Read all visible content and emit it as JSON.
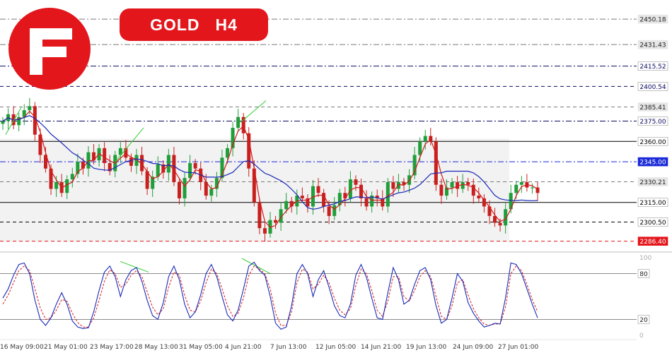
{
  "header": {
    "symbol": "GOLD",
    "timeframe": "H4"
  },
  "colors": {
    "brand_red": "#e3161b",
    "bull": "#1f9e3a",
    "bear": "#c8201e",
    "ma_fast": "#d41a1a",
    "ma_slow": "#1a2ab8",
    "stoch_main": "#1a2ab8",
    "stoch_signal": "#d41a1a",
    "trend_green": "#33cc33"
  },
  "chart_data": {
    "type": "candlestick",
    "price_levels": [
      {
        "value": 2450.18,
        "label": "2450.18",
        "style": "dash-dot",
        "color": "#7a7a7a",
        "label_bg": "#e6e6e6",
        "label_fg": "#222222"
      },
      {
        "value": 2431.43,
        "label": "2431.43",
        "style": "dash-dot",
        "color": "#7a7a7a",
        "label_bg": "#e6e6e6",
        "label_fg": "#222222"
      },
      {
        "value": 2415.52,
        "label": "2415.52",
        "style": "dash-dot",
        "color": "#0a0a60",
        "label_bg": "#ffffff",
        "label_fg": "#0a0a60"
      },
      {
        "value": 2400.54,
        "label": "2400.54",
        "style": "dash",
        "color": "#0a0a60",
        "label_bg": "#ffffff",
        "label_fg": "#0a0a60"
      },
      {
        "value": 2385.41,
        "label": "2385.41",
        "style": "dash",
        "color": "#7a7a7a",
        "label_bg": "#e6e6e6",
        "label_fg": "#222222"
      },
      {
        "value": 2375.0,
        "label": "2375.00",
        "style": "dash-dot",
        "color": "#0a0a60",
        "label_bg": "#ffffff",
        "label_fg": "#0a0a60"
      },
      {
        "value": 2360.0,
        "label": "2360.00",
        "style": "solid",
        "color": "#000000",
        "label_bg": "#ffffff",
        "label_fg": "#000000"
      },
      {
        "value": 2345.0,
        "label": "2345.00",
        "style": "dash-dot",
        "color": "#1a2ad8",
        "label_bg": "#1a2ad8",
        "label_fg": "#ffffff"
      },
      {
        "value": 2330.21,
        "label": "2330.21",
        "style": "dash",
        "color": "#7a7a7a",
        "label_bg": "#e6e6e6",
        "label_fg": "#222222"
      },
      {
        "value": 2315.0,
        "label": "2315.00",
        "style": "solid",
        "color": "#000000",
        "label_bg": "#ffffff",
        "label_fg": "#000000"
      },
      {
        "value": 2300.5,
        "label": "2300.50",
        "style": "dash",
        "color": "#000000",
        "label_bg": "#ffffff",
        "label_fg": "#000000"
      },
      {
        "value": 2286.4,
        "label": "2286.40",
        "style": "dash",
        "color": "#e3161b",
        "label_bg": "#e3161b",
        "label_fg": "#ffffff"
      }
    ],
    "y_range": [
      2281,
      2457
    ],
    "zone": [
      2286.4,
      2362
    ],
    "time_labels": [
      "16 May 09:00",
      "21 May 01:00",
      "23 May 17:00",
      "28 May 13:00",
      "31 May 05:00",
      "4 Jun 21:00",
      "7 Jun 13:00",
      "12 Jun 05:00",
      "14 Jun 21:00",
      "19 Jun 13:00",
      "24 Jun 09:00",
      "27 Jun 01:00"
    ],
    "closes": [
      2375,
      2380,
      2372,
      2378,
      2383,
      2386,
      2365,
      2350,
      2340,
      2325,
      2330,
      2322,
      2332,
      2336,
      2345,
      2340,
      2352,
      2346,
      2355,
      2344,
      2338,
      2350,
      2355,
      2348,
      2342,
      2350,
      2338,
      2325,
      2334,
      2343,
      2337,
      2350,
      2330,
      2318,
      2333,
      2344,
      2340,
      2330,
      2320,
      2325,
      2333,
      2348,
      2355,
      2370,
      2378,
      2366,
      2340,
      2315,
      2296,
      2292,
      2302,
      2300,
      2310,
      2316,
      2312,
      2320,
      2318,
      2312,
      2327,
      2322,
      2312,
      2305,
      2313,
      2322,
      2318,
      2332,
      2328,
      2318,
      2312,
      2320,
      2318,
      2312,
      2330,
      2325,
      2330,
      2328,
      2335,
      2350,
      2360,
      2364,
      2360,
      2328,
      2320,
      2326,
      2330,
      2325,
      2330,
      2328,
      2320,
      2318,
      2312,
      2305,
      2300,
      2298,
      2310,
      2322,
      2328,
      2330,
      2326,
      2326,
      2322
    ],
    "stochastic": {
      "levels": [
        80,
        20
      ],
      "level_labels": [
        "80",
        "20"
      ],
      "range_labels": [
        "100",
        "0"
      ],
      "main": [
        48,
        60,
        78,
        92,
        94,
        80,
        45,
        20,
        12,
        22,
        40,
        55,
        40,
        18,
        10,
        8,
        9,
        30,
        58,
        82,
        90,
        76,
        50,
        72,
        84,
        88,
        70,
        45,
        25,
        20,
        42,
        76,
        90,
        72,
        40,
        22,
        30,
        52,
        80,
        92,
        76,
        50,
        26,
        18,
        32,
        60,
        90,
        95,
        84,
        78,
        50,
        15,
        7,
        10,
        38,
        80,
        92,
        80,
        50,
        72,
        84,
        62,
        38,
        25,
        22,
        40,
        78,
        92,
        75,
        48,
        22,
        20,
        55,
        88,
        72,
        40,
        45,
        66,
        84,
        88,
        72,
        38,
        15,
        20,
        48,
        80,
        70,
        42,
        28,
        18,
        10,
        12,
        15,
        14,
        48,
        94,
        92,
        80,
        60,
        40,
        22
      ],
      "signal": [
        40,
        52,
        68,
        84,
        90,
        84,
        60,
        35,
        20,
        22,
        32,
        46,
        44,
        28,
        16,
        10,
        10,
        22,
        45,
        70,
        85,
        80,
        62,
        66,
        78,
        84,
        76,
        56,
        36,
        26,
        34,
        62,
        82,
        78,
        52,
        32,
        30,
        44,
        68,
        86,
        80,
        60,
        38,
        24,
        28,
        48,
        78,
        90,
        86,
        80,
        60,
        28,
        12,
        12,
        30,
        68,
        86,
        82,
        60,
        66,
        78,
        68,
        48,
        32,
        26,
        34,
        64,
        86,
        80,
        58,
        32,
        24,
        44,
        76,
        76,
        50,
        44,
        58,
        76,
        84,
        76,
        50,
        24,
        20,
        38,
        68,
        72,
        52,
        34,
        22,
        14,
        12,
        14,
        14,
        36,
        80,
        90,
        84,
        66,
        46,
        30
      ]
    }
  }
}
